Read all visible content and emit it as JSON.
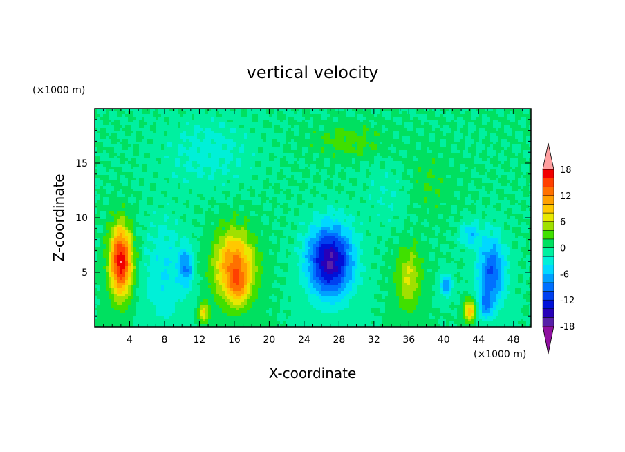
{
  "chart_data": {
    "type": "heatmap",
    "title": "vertical velocity",
    "xlabel": "X-coordinate",
    "ylabel": "Z-coordinate",
    "x_unit": "(×1000 m)",
    "y_unit": "(×1000 m)",
    "xlim": [
      0,
      50
    ],
    "ylim": [
      0,
      20
    ],
    "x_ticks": [
      4,
      8,
      12,
      16,
      20,
      24,
      28,
      32,
      36,
      40,
      44,
      48
    ],
    "y_ticks": [
      5,
      10,
      15
    ],
    "colorbar": {
      "levels": [
        -20,
        -18,
        -16,
        -14,
        -12,
        -10,
        -8,
        -6,
        -4,
        -2,
        0,
        2,
        4,
        6,
        8,
        10,
        12,
        14,
        16,
        18,
        20
      ],
      "labels": [
        "18",
        "12",
        "6",
        "0",
        "-6",
        "-12",
        "-18"
      ],
      "label_values": [
        18,
        12,
        6,
        0,
        -6,
        -12,
        -18
      ],
      "colors": [
        "#9010a0",
        "#5820a8",
        "#2800b8",
        "#0010d8",
        "#0040f0",
        "#0070ff",
        "#00a0ff",
        "#00d8ff",
        "#00f0d8",
        "#00f0a0",
        "#00e060",
        "#40e000",
        "#a0e000",
        "#e8e800",
        "#ffc800",
        "#ffa000",
        "#ff7000",
        "#ff4000",
        "#f00000",
        "#ffa0a0"
      ],
      "extend": "both"
    },
    "features": [
      {
        "x": 3,
        "z": 6,
        "sx": 1.3,
        "sz": 3.2,
        "amp": 18
      },
      {
        "x": 16,
        "z": 5.5,
        "sx": 2.3,
        "sz": 3.2,
        "amp": 13
      },
      {
        "x": 16.5,
        "z": 3.5,
        "sx": 1.0,
        "sz": 1.5,
        "amp": 5
      },
      {
        "x": 12.5,
        "z": 1.3,
        "sx": 0.6,
        "sz": 0.9,
        "amp": 8
      },
      {
        "x": 36,
        "z": 4.5,
        "sx": 1.5,
        "sz": 3,
        "amp": 6
      },
      {
        "x": 43,
        "z": 1.5,
        "sx": 0.7,
        "sz": 1.0,
        "amp": 10
      },
      {
        "x": 27,
        "z": 6,
        "sx": 2.6,
        "sz": 3.3,
        "amp": -16
      },
      {
        "x": 10.5,
        "z": 5.5,
        "sx": 0.8,
        "sz": 1.8,
        "amp": -7
      },
      {
        "x": 40.3,
        "z": 3.8,
        "sx": 0.7,
        "sz": 1.0,
        "amp": -8
      },
      {
        "x": 45.5,
        "z": 5,
        "sx": 1.6,
        "sz": 3.2,
        "amp": -10
      },
      {
        "x": 44.8,
        "z": 2,
        "sx": 0.8,
        "sz": 1.2,
        "amp": -6
      },
      {
        "x": 43,
        "z": 8.5,
        "sx": 1.2,
        "sz": 1.2,
        "amp": -5
      },
      {
        "x": 8,
        "z": 5,
        "sx": 2.5,
        "sz": 5,
        "amp": -4
      },
      {
        "x": 13,
        "z": 16,
        "sx": 5,
        "sz": 3,
        "amp": -3
      },
      {
        "x": 29,
        "z": 17,
        "sx": 4,
        "sz": 1.5,
        "amp": 3
      },
      {
        "x": 38,
        "z": 13,
        "sx": 3,
        "sz": 3,
        "amp": 2
      },
      {
        "x": 34,
        "z": 12,
        "sx": 3,
        "sz": 3,
        "amp": -2
      }
    ]
  }
}
